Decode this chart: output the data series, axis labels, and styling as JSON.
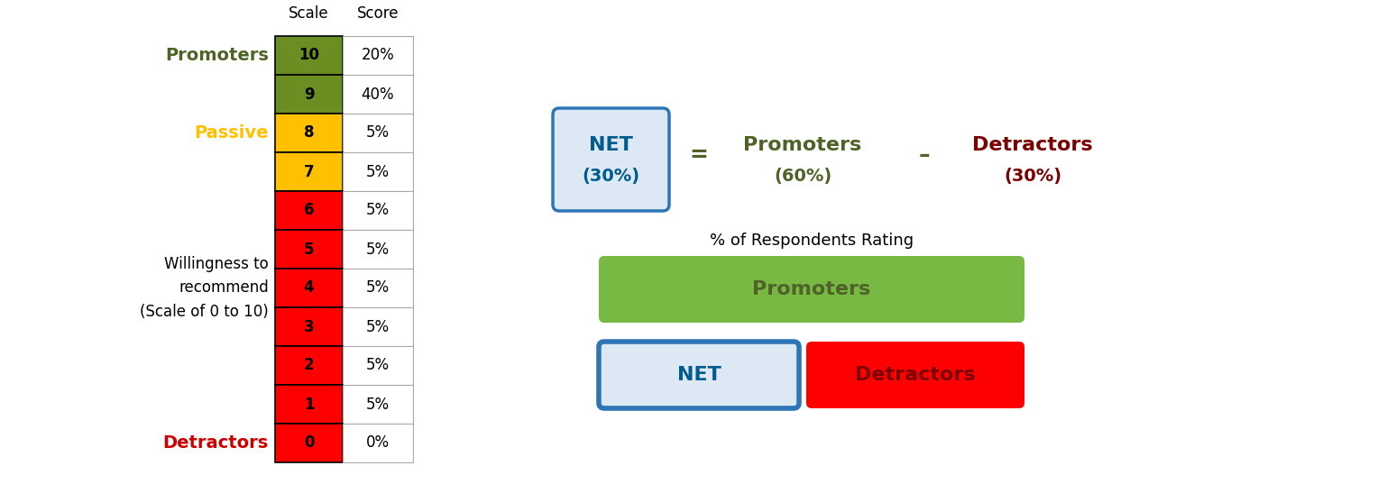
{
  "scale_values": [
    10,
    9,
    8,
    7,
    6,
    5,
    4,
    3,
    2,
    1,
    0
  ],
  "score_values": [
    "20%",
    "40%",
    "5%",
    "5%",
    "5%",
    "5%",
    "5%",
    "5%",
    "5%",
    "5%",
    "0%"
  ],
  "cell_colors": [
    "#6b8e23",
    "#6b8e23",
    "#ffc000",
    "#ffc000",
    "#ff0000",
    "#ff0000",
    "#ff0000",
    "#ff0000",
    "#ff0000",
    "#ff0000",
    "#ff0000"
  ],
  "promoters_label": "Promoters",
  "passive_label": "Passive",
  "detractors_label": "Detractors",
  "willingness_label": "Willingness to\nrecommend\n(Scale of 0 to 10)",
  "scale_header": "Scale",
  "score_header": "Score",
  "promoters_color": "#4f6228",
  "passive_color": "#ffc000",
  "detractors_color": "#cc0000",
  "willingness_color": "#000000",
  "net_box_text_color": "#005b8e",
  "net_box_border_color": "#2e75b6",
  "net_box_bg": "#dce9f5",
  "eq_promoters_color": "#4f6228",
  "eq_detractors_color": "#7b0000",
  "pct_respondents_text": "% of Respondents Rating",
  "green_btn_text": "Promoters",
  "green_btn_color": "#77b943",
  "green_btn_text_color": "#4f6228",
  "net_btn_text": "NET",
  "net_btn_bg": "#dce9f5",
  "net_btn_border": "#2e75b6",
  "net_btn_text_color": "#005b8e",
  "det_btn_text": "Detractors",
  "det_btn_color": "#ff0000",
  "det_btn_text_color": "#7b0000",
  "bg_color": "#ffffff"
}
